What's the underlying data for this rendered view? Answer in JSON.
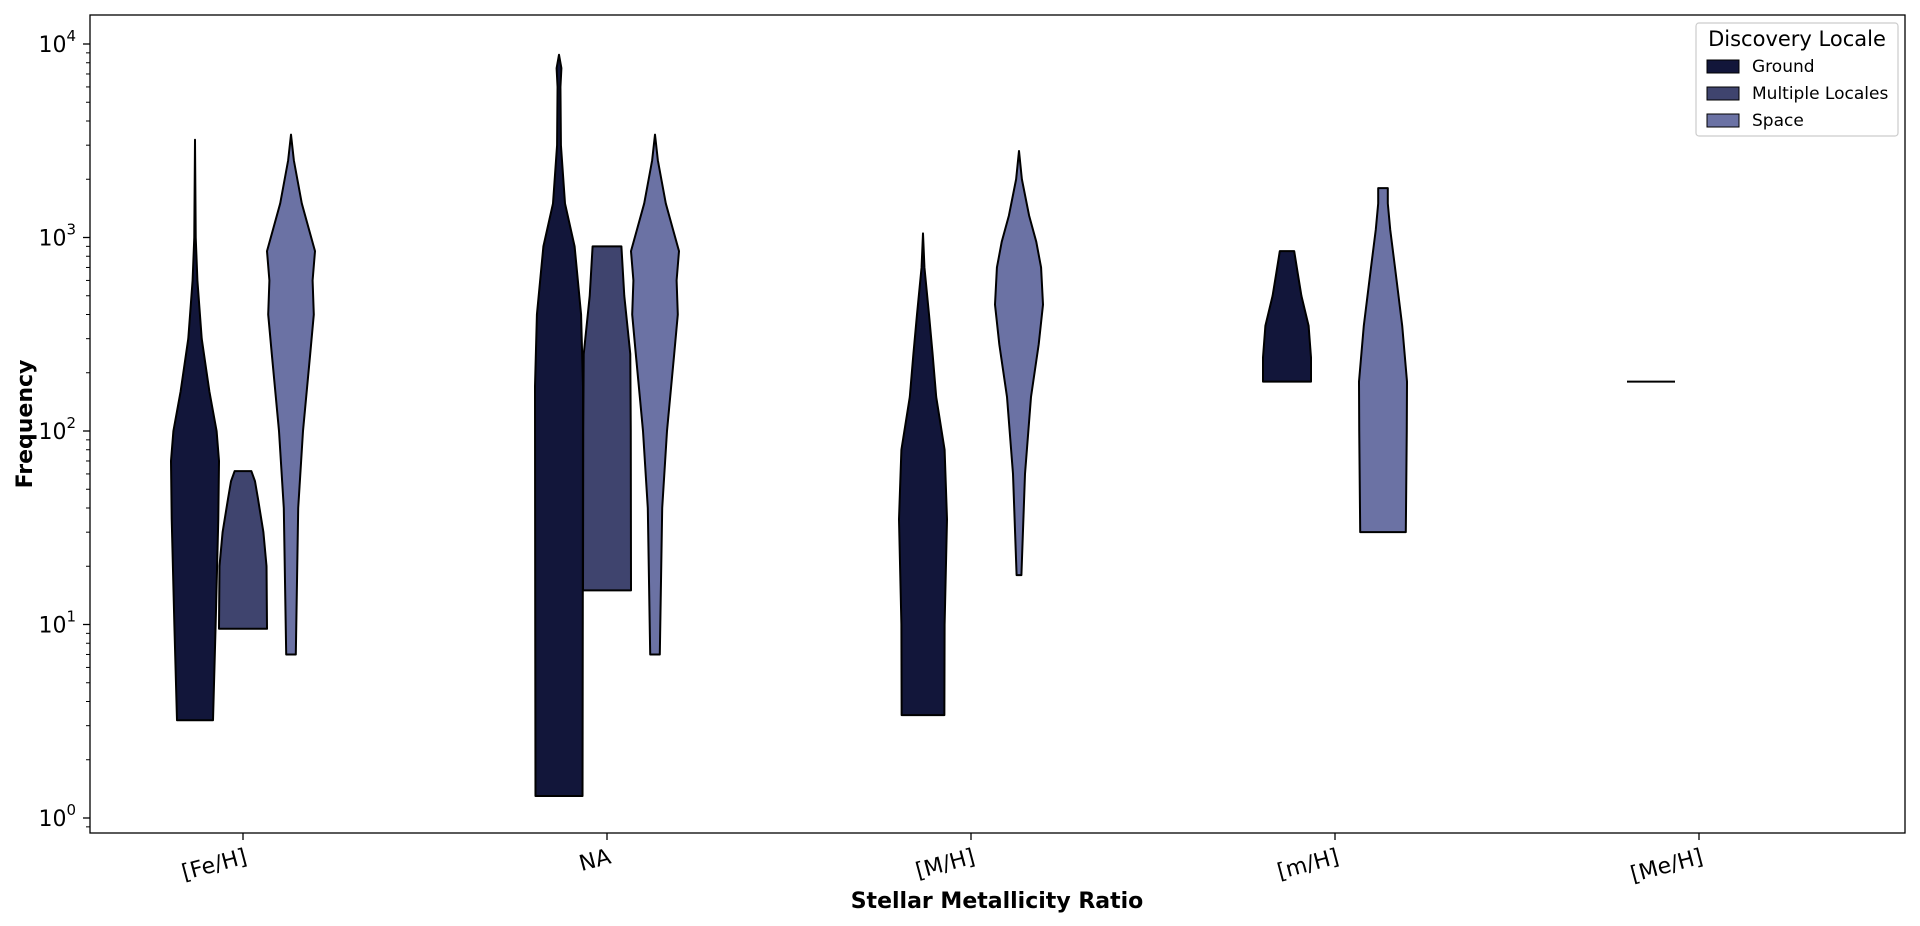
{
  "chart_data": {
    "type": "violin",
    "xlabel": "Stellar Metallicity Ratio",
    "ylabel": "Frequency",
    "yscale": "log",
    "ylim": [
      0.8,
      13000
    ],
    "y_ticks": [
      {
        "value": 1,
        "label": "10",
        "exp": "0"
      },
      {
        "value": 10,
        "label": "10",
        "exp": "1"
      },
      {
        "value": 100,
        "label": "10",
        "exp": "2"
      },
      {
        "value": 1000,
        "label": "10",
        "exp": "3"
      },
      {
        "value": 10000,
        "label": "10",
        "exp": "4"
      }
    ],
    "categories": [
      "[Fe/H]",
      "NA",
      "[M/H]",
      "[m/H]",
      "[Me/H]"
    ],
    "legend": {
      "title": "Discovery Locale",
      "position": "top-right",
      "items": [
        {
          "name": "Ground",
          "color": "#12163a"
        },
        {
          "name": "Multiple Locales",
          "color": "#3f446e"
        },
        {
          "name": "Space",
          "color": "#6b72a4"
        }
      ]
    },
    "series": [
      {
        "name": "Ground",
        "color": "#12163a",
        "violins": [
          {
            "category": "[Fe/H]",
            "min": 3.2,
            "max": 3200,
            "profile": [
              [
                3.2,
                0.75
              ],
              [
                10,
                0.86
              ],
              [
                35,
                0.97
              ],
              [
                70,
                1.0
              ],
              [
                100,
                0.9
              ],
              [
                160,
                0.6
              ],
              [
                300,
                0.28
              ],
              [
                600,
                0.1
              ],
              [
                1000,
                0.03
              ],
              [
                3200,
                0.0
              ]
            ]
          },
          {
            "category": "NA",
            "min": 1.3,
            "max": 8800,
            "profile": [
              [
                1.3,
                0.98
              ],
              [
                10,
                0.99
              ],
              [
                170,
                1.0
              ],
              [
                400,
                0.92
              ],
              [
                900,
                0.65
              ],
              [
                1500,
                0.25
              ],
              [
                3000,
                0.08
              ],
              [
                6000,
                0.06
              ],
              [
                7500,
                0.1
              ],
              [
                8800,
                0.0
              ]
            ]
          },
          {
            "category": "[M/H]",
            "min": 3.4,
            "max": 1050,
            "profile": [
              [
                3.4,
                0.89
              ],
              [
                10,
                0.9
              ],
              [
                35,
                1.0
              ],
              [
                80,
                0.9
              ],
              [
                150,
                0.55
              ],
              [
                250,
                0.4
              ],
              [
                400,
                0.25
              ],
              [
                700,
                0.06
              ],
              [
                1050,
                0.0
              ]
            ]
          },
          {
            "category": "[m/H]",
            "min": 180,
            "max": 850,
            "profile": [
              [
                180,
                1.0
              ],
              [
                240,
                1.0
              ],
              [
                350,
                0.9
              ],
              [
                500,
                0.6
              ],
              [
                650,
                0.45
              ],
              [
                850,
                0.3
              ]
            ]
          },
          {
            "category": "[Me/H]",
            "min": 180,
            "max": 180,
            "profile": [
              [
                180,
                1.0
              ]
            ]
          }
        ]
      },
      {
        "name": "Multiple Locales",
        "color": "#3f446e",
        "violins": [
          {
            "category": "[Fe/H]",
            "min": 9.5,
            "max": 62,
            "profile": [
              [
                9.5,
                1.0
              ],
              [
                20,
                0.98
              ],
              [
                30,
                0.85
              ],
              [
                45,
                0.62
              ],
              [
                55,
                0.5
              ],
              [
                62,
                0.35
              ]
            ]
          },
          {
            "category": "NA",
            "min": 15,
            "max": 900,
            "profile": [
              [
                15,
                1.0
              ],
              [
                100,
                0.99
              ],
              [
                250,
                0.97
              ],
              [
                500,
                0.72
              ],
              [
                900,
                0.6
              ]
            ]
          }
        ]
      },
      {
        "name": "Space",
        "color": "#6b72a4",
        "violins": [
          {
            "category": "[Fe/H]",
            "min": 7,
            "max": 3400,
            "profile": [
              [
                7,
                0.2
              ],
              [
                40,
                0.3
              ],
              [
                100,
                0.5
              ],
              [
                250,
                0.8
              ],
              [
                400,
                0.95
              ],
              [
                600,
                0.9
              ],
              [
                850,
                1.0
              ],
              [
                1100,
                0.75
              ],
              [
                1500,
                0.45
              ],
              [
                2500,
                0.12
              ],
              [
                3400,
                0.0
              ]
            ]
          },
          {
            "category": "NA",
            "min": 7,
            "max": 3400,
            "profile": [
              [
                7,
                0.2
              ],
              [
                40,
                0.3
              ],
              [
                100,
                0.5
              ],
              [
                250,
                0.8
              ],
              [
                400,
                0.95
              ],
              [
                600,
                0.9
              ],
              [
                850,
                1.0
              ],
              [
                1100,
                0.75
              ],
              [
                1500,
                0.45
              ],
              [
                2500,
                0.12
              ],
              [
                3400,
                0.0
              ]
            ]
          },
          {
            "category": "[M/H]",
            "min": 18,
            "max": 2800,
            "profile": [
              [
                18,
                0.1
              ],
              [
                60,
                0.25
              ],
              [
                150,
                0.5
              ],
              [
                280,
                0.82
              ],
              [
                450,
                1.0
              ],
              [
                700,
                0.92
              ],
              [
                950,
                0.72
              ],
              [
                1300,
                0.42
              ],
              [
                2000,
                0.12
              ],
              [
                2800,
                0.0
              ]
            ]
          },
          {
            "category": "[m/H]",
            "min": 30,
            "max": 1800,
            "profile": [
              [
                30,
                0.95
              ],
              [
                100,
                0.99
              ],
              [
                180,
                1.0
              ],
              [
                350,
                0.8
              ],
              [
                700,
                0.5
              ],
              [
                1100,
                0.3
              ],
              [
                1500,
                0.2
              ],
              [
                1800,
                0.2
              ]
            ]
          }
        ]
      }
    ]
  }
}
